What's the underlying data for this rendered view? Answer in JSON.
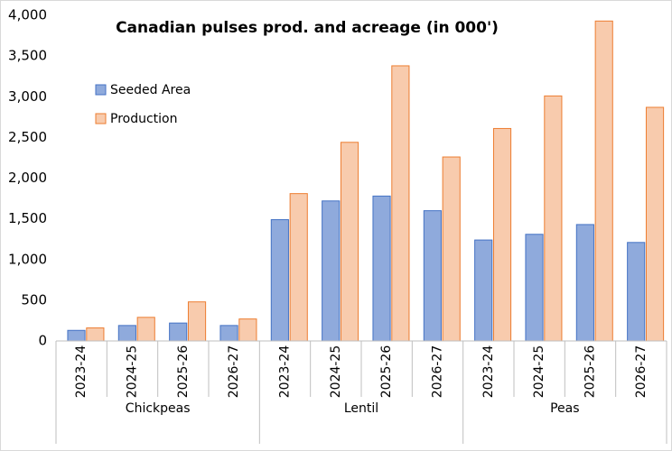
{
  "chart_data": {
    "type": "bar",
    "title": "Canadian pulses prod. and acreage (in 000')",
    "categories": [
      "2023-24",
      "2024-25",
      "2025-26",
      "2026-27",
      "2023-24",
      "2024-25",
      "2025-26",
      "2026-27",
      "2023-24",
      "2024-25",
      "2025-26",
      "2026-27"
    ],
    "category_groups": [
      "Chickpeas",
      "Lentil",
      "Peas"
    ],
    "series": [
      {
        "name": "Seeded Area",
        "color": "#8faadc",
        "edge_color": "#4472c4",
        "values": [
          130,
          190,
          220,
          190,
          1490,
          1720,
          1780,
          1600,
          1240,
          1310,
          1430,
          1210
        ]
      },
      {
        "name": "Production",
        "color": "#f8cbad",
        "edge_color": "#ed7d31",
        "values": [
          160,
          290,
          480,
          270,
          1810,
          2440,
          3380,
          2260,
          2610,
          3010,
          3930,
          2870
        ]
      }
    ],
    "ylim": [
      0,
      4000
    ],
    "yticks": [
      0,
      500,
      {
        "value": 1000,
        "label": "1,000"
      },
      {
        "value": 1500,
        "label": "1,500"
      },
      {
        "value": 2000,
        "label": "2,000"
      },
      {
        "value": 2500,
        "label": "2,500"
      },
      {
        "value": 3000,
        "label": "3,000"
      },
      {
        "value": 3500,
        "label": "3,500"
      },
      {
        "value": 4000,
        "label": "4,000"
      }
    ],
    "grid": false,
    "legend_position": "upper left",
    "tick_label_color": "#c00000",
    "title_color": "#c00000"
  }
}
